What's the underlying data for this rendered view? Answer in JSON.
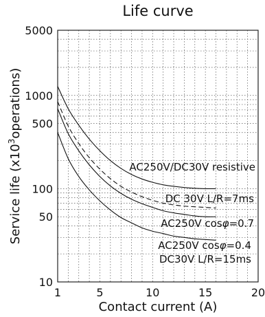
{
  "chart_data": {
    "type": "line",
    "title": "Life curve",
    "xlabel": "Contact current (A)",
    "ylabel": "Service life (x10",
    "ylabel_sup": "3",
    "ylabel_tail": "operations)",
    "x_scale": "linear",
    "y_scale": "log",
    "xlim": [
      1,
      20
    ],
    "ylim": [
      10,
      5000
    ],
    "x_ticks": [
      1,
      5,
      10,
      15,
      20
    ],
    "x_tick_labels": [
      "1",
      "5",
      "10",
      "15",
      "20"
    ],
    "y_ticks": [
      10,
      50,
      100,
      500,
      1000,
      5000
    ],
    "y_tick_labels": [
      "10",
      "50",
      "100",
      "500",
      "1000",
      "5000"
    ],
    "grid": true,
    "series": [
      {
        "name": "AC250V/DC30V resistive",
        "style": "solid",
        "x": [
          1,
          2,
          3,
          4,
          5,
          6,
          7,
          8,
          9,
          10,
          11,
          12,
          13,
          14,
          15,
          16
        ],
        "y": [
          1250,
          720,
          480,
          340,
          255,
          200,
          165,
          142,
          127,
          117,
          110,
          106,
          103,
          101,
          100,
          100
        ]
      },
      {
        "name": "DC 30V  L/R=7ms",
        "style": "dashed",
        "x": [
          1,
          2,
          3,
          4,
          5,
          6,
          7,
          8,
          9,
          10,
          11,
          12,
          13,
          14,
          15,
          16
        ],
        "y": [
          860,
          470,
          305,
          215,
          162,
          128,
          106,
          92,
          82,
          75,
          70,
          67,
          65,
          64,
          63,
          62
        ]
      },
      {
        "name": "AC250V cosφ=0.7",
        "style": "solid",
        "x": [
          1,
          2,
          3,
          4,
          5,
          6,
          7,
          8,
          9,
          10,
          11,
          12,
          13,
          14,
          15,
          16
        ],
        "y": [
          720,
          390,
          255,
          180,
          135,
          107,
          89,
          77,
          69,
          63,
          58,
          55,
          53,
          51,
          50,
          50
        ]
      },
      {
        "name": "AC250V cosφ=0.4\nDC30V L/R=15ms",
        "style": "solid",
        "x": [
          1,
          2,
          3,
          4,
          5,
          6,
          7,
          8,
          9,
          10,
          11,
          12,
          13,
          14,
          15,
          16
        ],
        "y": [
          400,
          210,
          135,
          97,
          74,
          59,
          49,
          43,
          38,
          35,
          33,
          31,
          30,
          29,
          28.5,
          28
        ]
      }
    ],
    "annotations": [
      "AC250V/DC30V resistive",
      "DC 30V  L/R=7ms",
      "AC250V cos",
      "φ",
      "=0.7",
      "AC250V cos",
      "φ",
      "=0.4",
      "DC30V L/R=15ms"
    ]
  }
}
